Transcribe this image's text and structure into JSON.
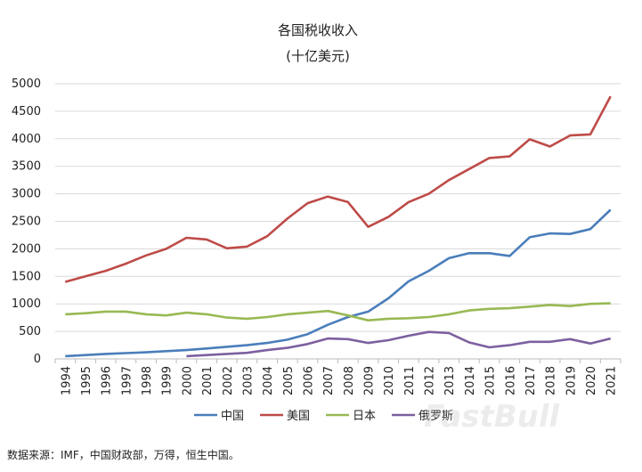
{
  "chart_data": {
    "type": "line",
    "title": "各国税收收入",
    "subtitle": "(十亿美元)",
    "x": [
      "1994",
      "1995",
      "1996",
      "1997",
      "1998",
      "1999",
      "2000",
      "2001",
      "2002",
      "2003",
      "2004",
      "2005",
      "2006",
      "2007",
      "2008",
      "2009",
      "2010",
      "2011",
      "2012",
      "2013",
      "2014",
      "2015",
      "2016",
      "2017",
      "2018",
      "2019",
      "2020",
      "2021"
    ],
    "ylim": [
      0,
      5000
    ],
    "yticks": [
      "0",
      "500",
      "1000",
      "1500",
      "2000",
      "2500",
      "3000",
      "3500",
      "4000",
      "4500",
      "5000"
    ],
    "grid": true,
    "legend": "bottom",
    "series": [
      {
        "name": "中国",
        "color": "#4a7ebb",
        "values": [
          50,
          70,
          90,
          105,
          120,
          140,
          160,
          190,
          220,
          250,
          290,
          350,
          450,
          620,
          760,
          860,
          1100,
          1410,
          1600,
          1830,
          1920,
          1920,
          1870,
          2210,
          2280,
          2270,
          2360,
          2710
        ]
      },
      {
        "name": "美国",
        "color": "#be4b48",
        "values": [
          1400,
          1500,
          1600,
          1730,
          1880,
          2000,
          2200,
          2170,
          2010,
          2040,
          2230,
          2550,
          2830,
          2950,
          2850,
          2400,
          2580,
          2850,
          3000,
          3250,
          3450,
          3650,
          3680,
          3990,
          3860,
          4060,
          4080,
          4770
        ]
      },
      {
        "name": "日本",
        "color": "#98b954",
        "values": [
          810,
          830,
          860,
          860,
          810,
          790,
          840,
          810,
          750,
          730,
          760,
          810,
          840,
          870,
          790,
          700,
          730,
          740,
          760,
          810,
          880,
          910,
          920,
          950,
          980,
          960,
          1000,
          1010
        ]
      },
      {
        "name": "俄罗斯",
        "color": "#7d60a0",
        "values": [
          null,
          null,
          null,
          null,
          null,
          null,
          50,
          70,
          90,
          110,
          160,
          200,
          270,
          370,
          360,
          290,
          340,
          420,
          490,
          470,
          300,
          210,
          250,
          310,
          310,
          360,
          280,
          370
        ]
      }
    ]
  },
  "footer": "数据来源：IMF，中国财政部，万得，恒生中国。",
  "watermark": "FastBull"
}
